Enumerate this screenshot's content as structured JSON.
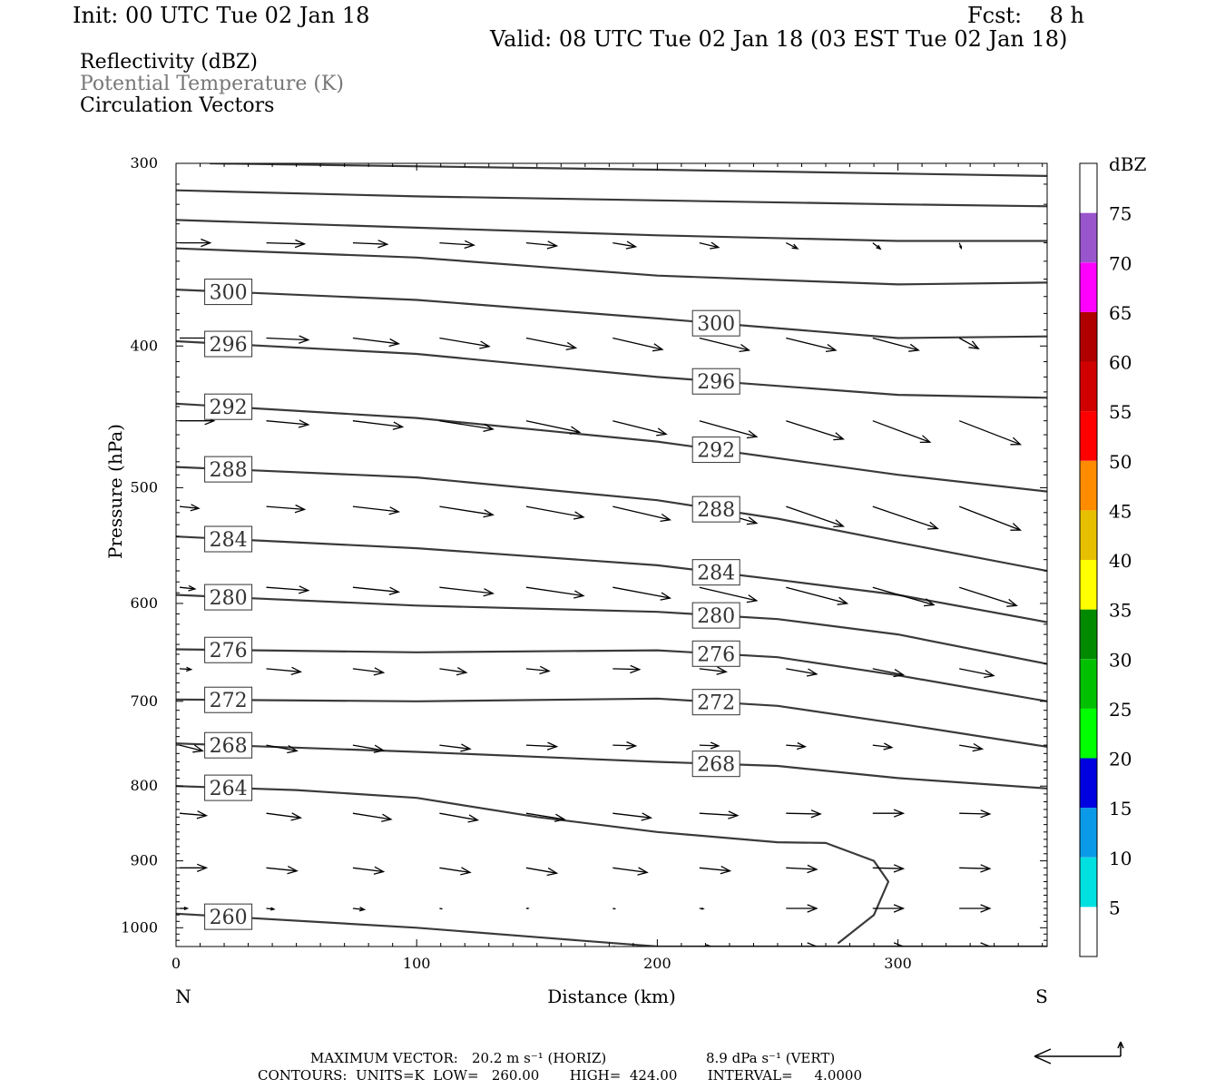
{
  "header": {
    "init": "Init: 00 UTC Tue 02 Jan 18",
    "fcst": "Fcst:    8 h",
    "valid": "Valid: 08 UTC Tue 02 Jan 18 (03 EST Tue 02 Jan 18)",
    "fields": [
      "Reflectivity (dBZ)",
      "Potential Temperature (K)",
      "Circulation Vectors"
    ]
  },
  "footer": {
    "max_vector_label": "MAXIMUM VECTOR:",
    "max_vector_horiz": "20.2 m s⁻¹ (HORIZ)",
    "max_vector_vert": "8.9 dPa s⁻¹ (VERT)",
    "contours": "CONTOURS:  UNITS=K  LOW=   260.00       HIGH=  424.00       INTERVAL=     4.0000"
  },
  "chart_data": {
    "type": "line",
    "title": "",
    "xlabel": "Distance (km)",
    "ylabel": "Pressure (hPa)",
    "xlim": [
      0,
      362
    ],
    "ylim": [
      1030,
      300
    ],
    "y_scale": "log",
    "x_ticks": [
      0,
      100,
      200,
      300
    ],
    "x_tick_labels": [
      "0",
      "100",
      "200",
      "300"
    ],
    "y_ticks": [
      300,
      400,
      500,
      600,
      700,
      800,
      900,
      1000
    ],
    "y_tick_labels": [
      "300",
      "400",
      "500",
      "600",
      "700",
      "800",
      "900",
      "1000"
    ],
    "x_end_labels": {
      "left": "N",
      "right": "S"
    },
    "grid": false,
    "colorbar": {
      "unit": "dBZ",
      "levels": [
        5,
        10,
        15,
        20,
        25,
        30,
        35,
        40,
        45,
        50,
        55,
        60,
        65,
        70,
        75
      ],
      "colors": [
        "#ffffff",
        "#00e0e0",
        "#0a9ae8",
        "#0000e0",
        "#00ff00",
        "#00c000",
        "#008a00",
        "#ffff00",
        "#e6c000",
        "#ff8c00",
        "#ff0000",
        "#d00000",
        "#b00000",
        "#ff00ff",
        "#9955cc",
        "#ffffff"
      ],
      "tick_labels": [
        "5",
        "10",
        "15",
        "20",
        "25",
        "30",
        "35",
        "40",
        "45",
        "50",
        "55",
        "60",
        "65",
        "70",
        "75"
      ]
    },
    "theta_contours": [
      {
        "value": 260,
        "label": "260",
        "points": [
          [
            0,
            978
          ],
          [
            100,
            1000
          ],
          [
            150,
            1015
          ],
          [
            200,
            1030
          ],
          [
            362,
            1030
          ]
        ]
      },
      {
        "value": 264,
        "label": "264",
        "points": [
          [
            0,
            800
          ],
          [
            50,
            805
          ],
          [
            100,
            815
          ],
          [
            150,
            840
          ],
          [
            200,
            860
          ],
          [
            250,
            874
          ],
          [
            270,
            875
          ],
          [
            290,
            900
          ],
          [
            296,
            930
          ],
          [
            290,
            980
          ],
          [
            275,
            1025
          ]
        ]
      },
      {
        "value": 268,
        "label": "268",
        "points": [
          [
            0,
            748
          ],
          [
            100,
            758
          ],
          [
            200,
            770
          ],
          [
            250,
            775
          ],
          [
            300,
            790
          ],
          [
            362,
            803
          ]
        ]
      },
      {
        "value": 272,
        "label": "272",
        "points": [
          [
            0,
            698
          ],
          [
            100,
            700
          ],
          [
            200,
            697
          ],
          [
            250,
            705
          ],
          [
            300,
            725
          ],
          [
            362,
            752
          ]
        ]
      },
      {
        "value": 276,
        "label": "276",
        "points": [
          [
            0,
            645
          ],
          [
            100,
            648
          ],
          [
            200,
            646
          ],
          [
            250,
            653
          ],
          [
            300,
            672
          ],
          [
            362,
            700
          ]
        ]
      },
      {
        "value": 280,
        "label": "280",
        "points": [
          [
            0,
            592
          ],
          [
            100,
            602
          ],
          [
            200,
            608
          ],
          [
            250,
            615
          ],
          [
            300,
            630
          ],
          [
            362,
            660
          ]
        ]
      },
      {
        "value": 284,
        "label": "284",
        "points": [
          [
            0,
            540
          ],
          [
            100,
            550
          ],
          [
            200,
            565
          ],
          [
            250,
            578
          ],
          [
            300,
            592
          ],
          [
            362,
            618
          ]
        ]
      },
      {
        "value": 288,
        "label": "288",
        "points": [
          [
            0,
            484
          ],
          [
            100,
            492
          ],
          [
            200,
            510
          ],
          [
            250,
            525
          ],
          [
            300,
            545
          ],
          [
            362,
            570
          ]
        ]
      },
      {
        "value": 292,
        "label": "292",
        "points": [
          [
            0,
            438
          ],
          [
            100,
            448
          ],
          [
            200,
            465
          ],
          [
            300,
            490
          ],
          [
            362,
            503
          ]
        ]
      },
      {
        "value": 296,
        "label": "296",
        "points": [
          [
            0,
            397
          ],
          [
            100,
            405
          ],
          [
            200,
            420
          ],
          [
            300,
            432
          ],
          [
            362,
            434
          ]
        ]
      },
      {
        "value": 300,
        "label": "300",
        "points": [
          [
            0,
            366
          ],
          [
            100,
            372
          ],
          [
            200,
            383
          ],
          [
            300,
            395
          ],
          [
            362,
            394
          ]
        ]
      },
      {
        "value": 304,
        "label": "",
        "points": [
          [
            0,
            343
          ],
          [
            100,
            348
          ],
          [
            200,
            358
          ],
          [
            300,
            363
          ],
          [
            362,
            362
          ]
        ]
      },
      {
        "value": 308,
        "label": "",
        "points": [
          [
            0,
            328
          ],
          [
            100,
            332
          ],
          [
            200,
            336
          ],
          [
            300,
            339
          ],
          [
            362,
            339
          ]
        ]
      },
      {
        "value": 312,
        "label": "",
        "points": [
          [
            0,
            313
          ],
          [
            100,
            316
          ],
          [
            200,
            318
          ],
          [
            300,
            320
          ],
          [
            362,
            321
          ]
        ]
      },
      {
        "value": 316,
        "label": "",
        "points": [
          [
            14,
            300
          ],
          [
            200,
            303
          ],
          [
            362,
            306
          ]
        ]
      }
    ],
    "vectors": [
      {
        "p": 340,
        "x": [
          0,
          36,
          72,
          108,
          144,
          180,
          216,
          252,
          288,
          324
        ],
        "u": [
          8,
          10,
          9,
          9,
          8,
          6,
          5,
          3,
          2,
          0.5
        ],
        "w": [
          0,
          -0.3,
          -0.4,
          -0.6,
          -0.8,
          -1,
          -1.2,
          -1.5,
          -1.6,
          -1.4
        ]
      },
      {
        "p": 395,
        "x": [
          0,
          36,
          72,
          108,
          144,
          180,
          216,
          252,
          288,
          324
        ],
        "u": [
          10,
          11,
          12,
          13,
          13,
          13,
          13,
          13,
          12,
          5
        ],
        "w": [
          0,
          -0.5,
          -1.5,
          -2.2,
          -2.6,
          -3,
          -3.2,
          -3.2,
          -3.2,
          -2.8
        ]
      },
      {
        "p": 450,
        "x": [
          0,
          36,
          72,
          108,
          144,
          180,
          216,
          252,
          288,
          324
        ],
        "u": [
          9,
          11,
          13,
          14,
          14,
          14,
          15,
          15,
          15,
          16
        ],
        "w": [
          0,
          -1,
          -1.6,
          -2.2,
          -3,
          -3.5,
          -4.2,
          -4.8,
          -5.6,
          -6.2
        ]
      },
      {
        "p": 515,
        "x": [
          0,
          36,
          72,
          108,
          144,
          180,
          216,
          252,
          288,
          324
        ],
        "u": [
          5,
          10,
          12,
          14,
          15,
          15,
          15,
          15,
          17,
          16
        ],
        "w": [
          -0.5,
          -0.8,
          -1.4,
          -2.2,
          -2.8,
          -3.5,
          -4.4,
          -5.2,
          -5.8,
          -6.2
        ]
      },
      {
        "p": 585,
        "x": [
          0,
          36,
          72,
          108,
          144,
          180,
          216,
          252,
          288,
          324
        ],
        "u": [
          4,
          11,
          12,
          14,
          15,
          15,
          15,
          16,
          16,
          15
        ],
        "w": [
          -0.4,
          -0.8,
          -1.2,
          -1.6,
          -2.2,
          -2.8,
          -3.5,
          -4.2,
          -4.6,
          -4.8
        ]
      },
      {
        "p": 665,
        "x": [
          0,
          36,
          72,
          108,
          144,
          180,
          216,
          252,
          288,
          324
        ],
        "u": [
          3,
          9,
          8,
          7,
          6,
          7,
          7,
          8,
          8,
          9
        ],
        "w": [
          -0.2,
          -0.8,
          -1,
          -1,
          -0.6,
          -0.2,
          -0.8,
          -1.4,
          -1.6,
          -1.8
        ]
      },
      {
        "p": 750,
        "x": [
          0,
          36,
          72,
          108,
          144,
          180,
          216,
          252,
          288,
          324
        ],
        "u": [
          6,
          8,
          8,
          8,
          8,
          6,
          5,
          5,
          5,
          6
        ],
        "w": [
          -1.5,
          -1.5,
          -1.4,
          -1,
          -0.4,
          -0.2,
          -0.2,
          -0.4,
          -0.6,
          -1
        ]
      },
      {
        "p": 835,
        "x": [
          0,
          36,
          72,
          108,
          144,
          180,
          216,
          252,
          288,
          324
        ],
        "u": [
          7,
          9,
          10,
          10,
          10,
          10,
          10,
          9,
          8,
          8
        ],
        "w": [
          -0.6,
          -1.2,
          -1.6,
          -1.8,
          -1.6,
          -1.2,
          -0.6,
          -0.2,
          0,
          -0.2
        ]
      },
      {
        "p": 910,
        "x": [
          0,
          36,
          72,
          108,
          144,
          180,
          216,
          252,
          288,
          324
        ],
        "u": [
          7,
          8,
          8,
          8,
          8,
          9,
          8,
          8,
          8,
          8
        ],
        "w": [
          0,
          -0.8,
          -1,
          -1.2,
          -1.4,
          -1.2,
          -0.8,
          -0.4,
          -0.2,
          -0.2
        ]
      },
      {
        "p": 970,
        "x": [
          0,
          36,
          72,
          108,
          144,
          180,
          216,
          252,
          288,
          324
        ],
        "u": [
          2,
          2,
          3,
          0.5,
          0.5,
          0.5,
          1,
          8,
          8,
          8
        ],
        "w": [
          0,
          -0.2,
          -0.3,
          -0.1,
          0,
          -0.1,
          -0.1,
          0,
          0,
          0
        ]
      },
      {
        "p": 1030,
        "x": [
          0,
          36,
          72,
          108,
          144,
          180,
          216,
          252,
          288,
          324
        ],
        "u": [
          0,
          0,
          0,
          0,
          0,
          0.5,
          3,
          8,
          8,
          8
        ],
        "w": [
          0,
          0,
          0,
          0,
          0,
          0,
          0,
          0,
          0,
          0
        ]
      }
    ]
  }
}
